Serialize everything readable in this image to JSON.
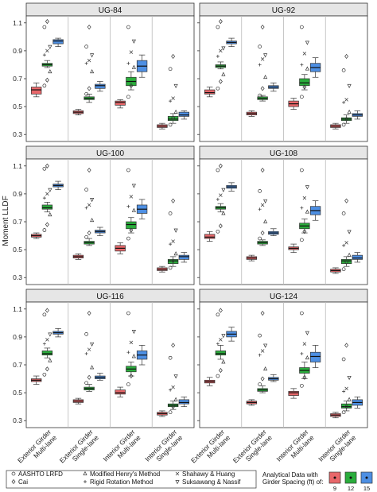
{
  "chart_data": {
    "type": "boxplot",
    "ylabel": "Moment LLDF",
    "ylim": [
      0.25,
      1.15
    ],
    "yticks": [
      0.3,
      0.5,
      0.7,
      0.9,
      1.1
    ],
    "categories": [
      "Exterior Girder Multi-lane",
      "Exterior Girder Single-lane",
      "Interior Girder Multi-lane",
      "Interior Girder Single-lane"
    ],
    "category_lines": [
      [
        "Exterior Girder",
        "Multi-lane"
      ],
      [
        "Exterior Girder",
        "Single-lane"
      ],
      [
        "Interior Girder",
        "Multi-lane"
      ],
      [
        "Interior Girder",
        "Single-lane"
      ]
    ],
    "spacing_series": [
      {
        "name": "9",
        "color": "#e8676a"
      },
      {
        "name": "12",
        "color": "#2aad3c"
      },
      {
        "name": "15",
        "color": "#4d8fe3"
      }
    ],
    "legend_methods": [
      {
        "symbol": "circle",
        "label": "AASHTO LRFD"
      },
      {
        "symbol": "diamond",
        "label": "Cai"
      },
      {
        "symbol": "triangle-up",
        "label": "Modified Henry's Method"
      },
      {
        "symbol": "plus",
        "label": "Rigid Rotation Method"
      },
      {
        "symbol": "cross",
        "label": "Shahawy & Huang"
      },
      {
        "symbol": "triangle-down",
        "label": "Suksawang & Nassif"
      }
    ],
    "legend_spacing_title": [
      "Analytical Data with",
      "Girder Spacing (ft) of:"
    ],
    "panels": [
      {
        "title": "UG-84",
        "boxes": [
          [
            0.62,
            0.59,
            0.64,
            0.57,
            0.67
          ],
          [
            0.8,
            0.79,
            0.81,
            0.78,
            0.83
          ],
          [
            0.97,
            0.95,
            0.98,
            0.93,
            0.99
          ],
          [
            0.46,
            0.45,
            0.47,
            0.44,
            0.48
          ],
          [
            0.56,
            0.55,
            0.57,
            0.53,
            0.59
          ],
          [
            0.65,
            0.63,
            0.66,
            0.61,
            0.68
          ],
          [
            0.53,
            0.51,
            0.54,
            0.49,
            0.55
          ],
          [
            0.68,
            0.65,
            0.71,
            0.62,
            0.75
          ],
          [
            0.79,
            0.75,
            0.83,
            0.71,
            0.87
          ],
          [
            0.36,
            0.35,
            0.37,
            0.34,
            0.38
          ],
          [
            0.41,
            0.4,
            0.43,
            0.38,
            0.45
          ],
          [
            0.44,
            0.43,
            0.46,
            0.41,
            0.47
          ]
        ],
        "markers": [
          {
            "group": 0,
            "values": [
              0.65,
              0.69,
              0.75,
              0.87,
              0.9,
              0.93,
              1.07,
              1.11
            ]
          },
          {
            "group": 1,
            "values": [
              0.59,
              0.63,
              0.75,
              0.81,
              0.83,
              0.87,
              0.93,
              1.07
            ]
          },
          {
            "group": 2,
            "values": [
              0.57,
              0.65,
              0.78,
              0.81,
              0.89,
              0.97,
              1.07
            ]
          },
          {
            "group": 3,
            "values": [
              0.37,
              0.42,
              0.46,
              0.54,
              0.56,
              0.65,
              0.77,
              0.86
            ]
          }
        ]
      },
      {
        "title": "UG-92",
        "boxes": [
          [
            0.6,
            0.59,
            0.62,
            0.57,
            0.64
          ],
          [
            0.79,
            0.78,
            0.8,
            0.77,
            0.82
          ],
          [
            0.96,
            0.95,
            0.97,
            0.93,
            0.99
          ],
          [
            0.45,
            0.44,
            0.46,
            0.43,
            0.47
          ],
          [
            0.56,
            0.55,
            0.57,
            0.54,
            0.58
          ],
          [
            0.64,
            0.63,
            0.65,
            0.61,
            0.67
          ],
          [
            0.52,
            0.5,
            0.54,
            0.48,
            0.56
          ],
          [
            0.67,
            0.65,
            0.7,
            0.62,
            0.73
          ],
          [
            0.78,
            0.75,
            0.81,
            0.71,
            0.85
          ],
          [
            0.36,
            0.35,
            0.37,
            0.34,
            0.38
          ],
          [
            0.41,
            0.4,
            0.42,
            0.38,
            0.44
          ],
          [
            0.44,
            0.43,
            0.45,
            0.41,
            0.47
          ]
        ],
        "markers": [
          {
            "group": 0,
            "values": [
              0.63,
              0.68,
              0.73,
              0.86,
              0.9,
              0.92,
              1.07,
              1.11
            ]
          },
          {
            "group": 1,
            "values": [
              0.58,
              0.63,
              0.71,
              0.8,
              0.84,
              0.87,
              0.93,
              1.07
            ]
          },
          {
            "group": 2,
            "values": [
              0.57,
              0.64,
              0.77,
              0.8,
              0.88,
              0.96,
              1.07
            ]
          },
          {
            "group": 3,
            "values": [
              0.37,
              0.41,
              0.46,
              0.53,
              0.55,
              0.65,
              0.76,
              0.86
            ]
          }
        ]
      },
      {
        "title": "UG-100",
        "boxes": [
          [
            0.6,
            0.59,
            0.61,
            0.58,
            0.62
          ],
          [
            0.8,
            0.79,
            0.82,
            0.77,
            0.84
          ],
          [
            0.96,
            0.95,
            0.97,
            0.93,
            0.99
          ],
          [
            0.45,
            0.44,
            0.46,
            0.43,
            0.47
          ],
          [
            0.55,
            0.54,
            0.56,
            0.53,
            0.58
          ],
          [
            0.63,
            0.62,
            0.64,
            0.6,
            0.66
          ],
          [
            0.51,
            0.49,
            0.53,
            0.47,
            0.55
          ],
          [
            0.68,
            0.65,
            0.7,
            0.62,
            0.73
          ],
          [
            0.79,
            0.76,
            0.82,
            0.72,
            0.86
          ],
          [
            0.36,
            0.35,
            0.37,
            0.34,
            0.38
          ],
          [
            0.42,
            0.4,
            0.43,
            0.38,
            0.45
          ],
          [
            0.45,
            0.43,
            0.46,
            0.41,
            0.48
          ]
        ],
        "markers": [
          {
            "group": 0,
            "values": [
              0.64,
              0.68,
              0.75,
              0.87,
              0.9,
              0.93,
              1.08,
              1.1
            ]
          },
          {
            "group": 1,
            "values": [
              0.59,
              0.62,
              0.71,
              0.8,
              0.82,
              0.86,
              0.93,
              1.07
            ]
          },
          {
            "group": 2,
            "values": [
              0.58,
              0.64,
              0.78,
              0.81,
              0.88,
              0.96,
              1.07
            ]
          },
          {
            "group": 3,
            "values": [
              0.37,
              0.42,
              0.47,
              0.54,
              0.56,
              0.64,
              0.76,
              0.85
            ]
          }
        ]
      },
      {
        "title": "UG-108",
        "boxes": [
          [
            0.59,
            0.58,
            0.61,
            0.56,
            0.63
          ],
          [
            0.8,
            0.79,
            0.81,
            0.77,
            0.83
          ],
          [
            0.95,
            0.94,
            0.96,
            0.92,
            0.98
          ],
          [
            0.44,
            0.43,
            0.45,
            0.42,
            0.46
          ],
          [
            0.55,
            0.54,
            0.56,
            0.53,
            0.57
          ],
          [
            0.62,
            0.61,
            0.63,
            0.6,
            0.65
          ],
          [
            0.51,
            0.5,
            0.52,
            0.48,
            0.54
          ],
          [
            0.67,
            0.65,
            0.69,
            0.62,
            0.72
          ],
          [
            0.78,
            0.75,
            0.81,
            0.71,
            0.85
          ],
          [
            0.35,
            0.34,
            0.36,
            0.33,
            0.37
          ],
          [
            0.42,
            0.4,
            0.43,
            0.38,
            0.45
          ],
          [
            0.44,
            0.43,
            0.46,
            0.41,
            0.48
          ]
        ],
        "markers": [
          {
            "group": 0,
            "values": [
              0.63,
              0.67,
              0.76,
              0.86,
              0.89,
              0.93,
              1.07,
              1.1
            ]
          },
          {
            "group": 1,
            "values": [
              0.58,
              0.62,
              0.7,
              0.79,
              0.82,
              0.85,
              0.92,
              1.07
            ]
          },
          {
            "group": 2,
            "values": [
              0.57,
              0.63,
              0.77,
              0.8,
              0.87,
              0.95,
              1.07
            ]
          },
          {
            "group": 3,
            "values": [
              0.36,
              0.41,
              0.46,
              0.53,
              0.55,
              0.63,
              0.76,
              0.85
            ]
          }
        ]
      },
      {
        "title": "UG-116",
        "boxes": [
          [
            0.59,
            0.58,
            0.6,
            0.56,
            0.62
          ],
          [
            0.78,
            0.77,
            0.8,
            0.75,
            0.82
          ],
          [
            0.93,
            0.92,
            0.94,
            0.9,
            0.96
          ],
          [
            0.44,
            0.43,
            0.45,
            0.42,
            0.46
          ],
          [
            0.53,
            0.52,
            0.54,
            0.51,
            0.56
          ],
          [
            0.61,
            0.6,
            0.62,
            0.59,
            0.64
          ],
          [
            0.5,
            0.49,
            0.52,
            0.47,
            0.54
          ],
          [
            0.67,
            0.65,
            0.69,
            0.62,
            0.72
          ],
          [
            0.77,
            0.74,
            0.8,
            0.7,
            0.84
          ],
          [
            0.35,
            0.34,
            0.36,
            0.33,
            0.37
          ],
          [
            0.41,
            0.4,
            0.42,
            0.38,
            0.44
          ],
          [
            0.43,
            0.42,
            0.45,
            0.4,
            0.47
          ]
        ],
        "markers": [
          {
            "group": 0,
            "values": [
              0.63,
              0.67,
              0.73,
              0.85,
              0.88,
              0.92,
              1.06,
              1.09
            ]
          },
          {
            "group": 1,
            "values": [
              0.57,
              0.61,
              0.68,
              0.78,
              0.81,
              0.85,
              0.92,
              1.07
            ]
          },
          {
            "group": 2,
            "values": [
              0.56,
              0.62,
              0.76,
              0.79,
              0.86,
              0.94,
              1.07
            ]
          },
          {
            "group": 3,
            "values": [
              0.36,
              0.4,
              0.45,
              0.52,
              0.54,
              0.62,
              0.75,
              0.84
            ]
          }
        ]
      },
      {
        "title": "UG-124",
        "boxes": [
          [
            0.58,
            0.57,
            0.59,
            0.55,
            0.61
          ],
          [
            0.78,
            0.77,
            0.8,
            0.74,
            0.84
          ],
          [
            0.92,
            0.9,
            0.94,
            0.87,
            0.97
          ],
          [
            0.43,
            0.42,
            0.44,
            0.41,
            0.45
          ],
          [
            0.52,
            0.51,
            0.53,
            0.5,
            0.55
          ],
          [
            0.6,
            0.59,
            0.61,
            0.58,
            0.63
          ],
          [
            0.5,
            0.48,
            0.51,
            0.46,
            0.53
          ],
          [
            0.66,
            0.64,
            0.68,
            0.6,
            0.72
          ],
          [
            0.76,
            0.72,
            0.79,
            0.68,
            0.84
          ],
          [
            0.34,
            0.33,
            0.35,
            0.32,
            0.36
          ],
          [
            0.4,
            0.39,
            0.42,
            0.37,
            0.44
          ],
          [
            0.43,
            0.41,
            0.45,
            0.39,
            0.47
          ]
        ],
        "markers": [
          {
            "group": 0,
            "values": [
              0.62,
              0.66,
              0.72,
              0.85,
              0.88,
              0.91,
              1.06,
              1.09
            ]
          },
          {
            "group": 1,
            "values": [
              0.56,
              0.6,
              0.67,
              0.77,
              0.8,
              0.84,
              0.91,
              1.07
            ]
          },
          {
            "group": 2,
            "values": [
              0.55,
              0.61,
              0.75,
              0.78,
              0.85,
              0.93,
              1.07
            ]
          },
          {
            "group": 3,
            "values": [
              0.36,
              0.4,
              0.45,
              0.51,
              0.53,
              0.61,
              0.74,
              0.84
            ]
          }
        ]
      }
    ]
  }
}
